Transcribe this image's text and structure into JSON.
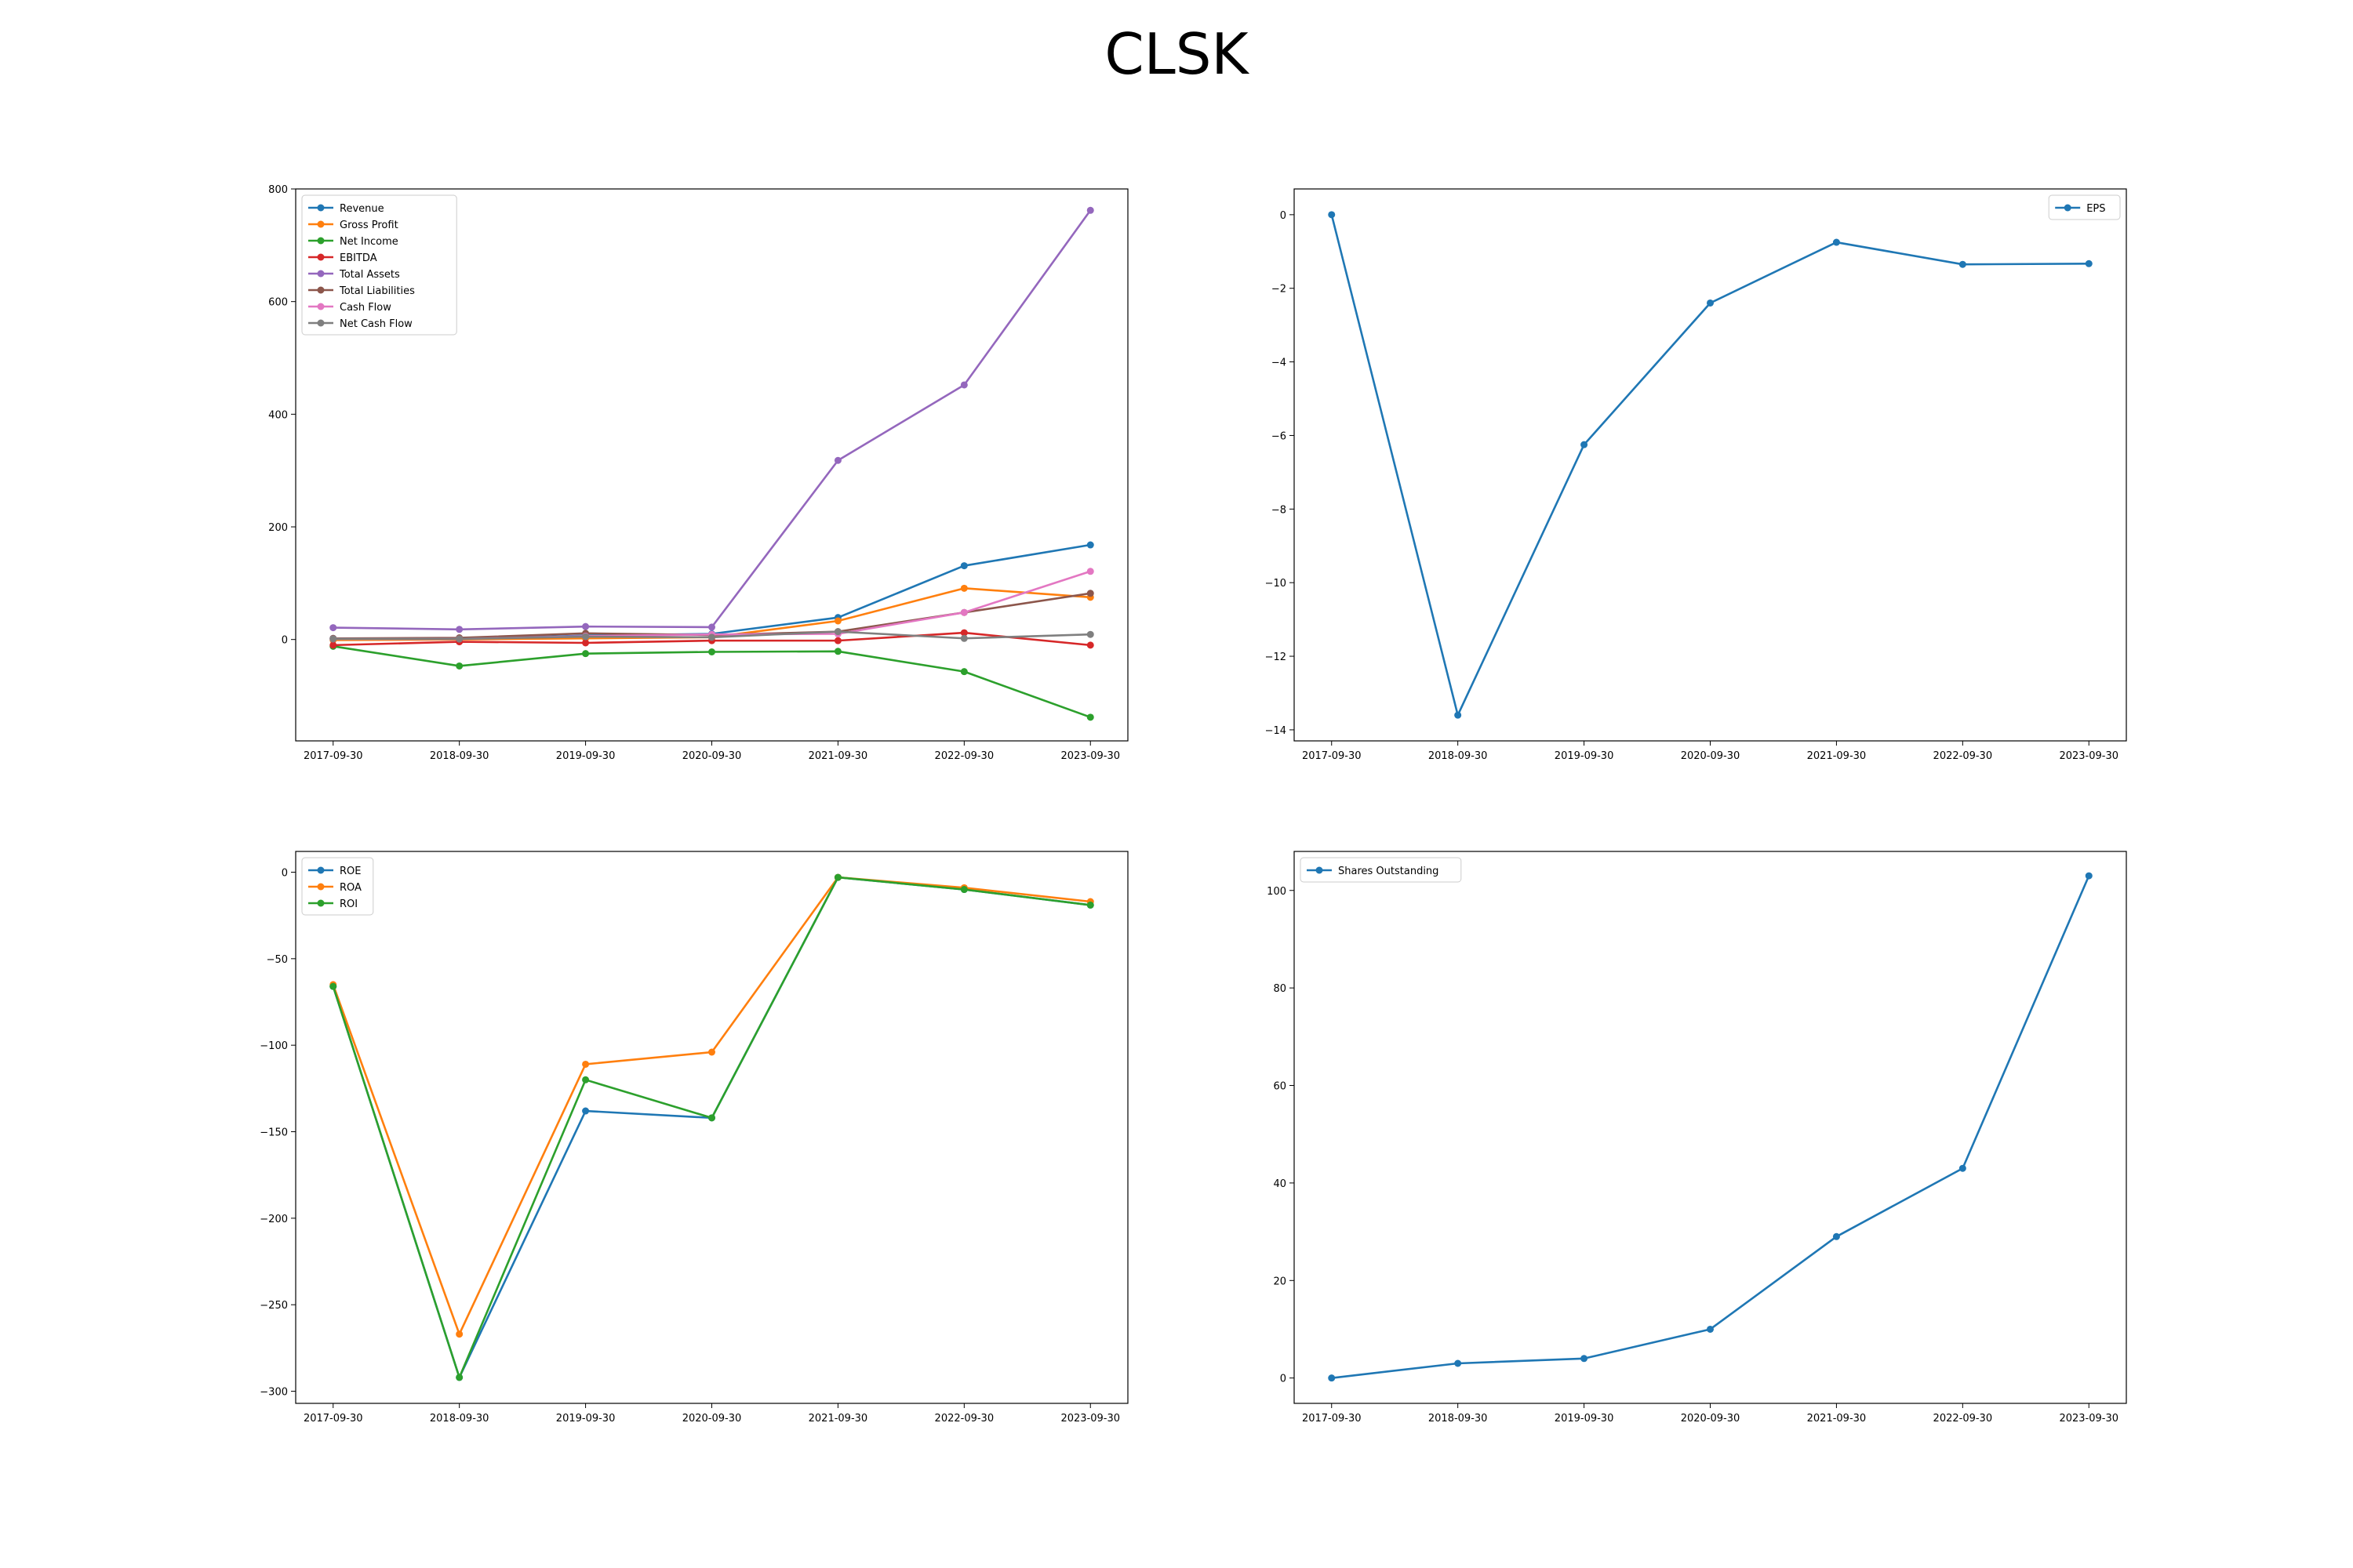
{
  "figure": {
    "title": "CLSK"
  },
  "chart_data": [
    {
      "type": "line",
      "title": "",
      "xlabel": "",
      "ylabel": "",
      "categories": [
        "2017-09-30",
        "2018-09-30",
        "2019-09-30",
        "2020-09-30",
        "2021-09-30",
        "2022-09-30",
        "2023-09-30"
      ],
      "ylim": [
        -180,
        800
      ],
      "yticks": [
        0,
        200,
        400,
        600,
        800
      ],
      "legend_position": "upper-left",
      "grid": false,
      "series": [
        {
          "name": "Revenue",
          "color": "#1f77b4",
          "values": [
            2,
            1,
            7,
            10,
            39,
            131,
            168
          ]
        },
        {
          "name": "Gross Profit",
          "color": "#ff7f0e",
          "values": [
            -1,
            0,
            2,
            4,
            33,
            91,
            75
          ]
        },
        {
          "name": "Net Income",
          "color": "#2ca02c",
          "values": [
            -12,
            -47,
            -25,
            -22,
            -21,
            -57,
            -138
          ]
        },
        {
          "name": "EBITDA",
          "color": "#d62728",
          "values": [
            -10,
            -4,
            -6,
            -2,
            -2,
            12,
            -10
          ]
        },
        {
          "name": "Total Assets",
          "color": "#9467bd",
          "values": [
            21,
            18,
            23,
            22,
            318,
            452,
            762
          ]
        },
        {
          "name": "Total Liabilities",
          "color": "#8c564b",
          "values": [
            2,
            3,
            11,
            8,
            14,
            48,
            82
          ]
        },
        {
          "name": "Cash Flow",
          "color": "#e377c2",
          "values": [
            1,
            1,
            6,
            9,
            10,
            48,
            121
          ]
        },
        {
          "name": "Net Cash Flow",
          "color": "#7f7f7f",
          "values": [
            1,
            1,
            5,
            4,
            14,
            2,
            9
          ]
        }
      ]
    },
    {
      "type": "line",
      "title": "",
      "xlabel": "",
      "ylabel": "",
      "categories": [
        "2017-09-30",
        "2018-09-30",
        "2019-09-30",
        "2020-09-30",
        "2021-09-30",
        "2022-09-30",
        "2023-09-30"
      ],
      "ylim": [
        -14.3,
        0.7
      ],
      "yticks": [
        0,
        -2,
        -4,
        -6,
        -8,
        -10,
        -12,
        -14
      ],
      "legend_position": "upper-right",
      "grid": false,
      "series": [
        {
          "name": "EPS",
          "color": "#1f77b4",
          "values": [
            0,
            -13.6,
            -6.25,
            -2.4,
            -0.75,
            -1.35,
            -1.33
          ]
        }
      ]
    },
    {
      "type": "line",
      "title": "",
      "xlabel": "",
      "ylabel": "",
      "categories": [
        "2017-09-30",
        "2018-09-30",
        "2019-09-30",
        "2020-09-30",
        "2021-09-30",
        "2022-09-30",
        "2023-09-30"
      ],
      "ylim": [
        -307,
        12
      ],
      "yticks": [
        0,
        -50,
        -100,
        -150,
        -200,
        -250,
        -300
      ],
      "legend_position": "upper-left",
      "grid": false,
      "series": [
        {
          "name": "ROE",
          "color": "#1f77b4",
          "values": [
            -66,
            -292,
            -138,
            -142,
            -3,
            -10,
            -19
          ]
        },
        {
          "name": "ROA",
          "color": "#ff7f0e",
          "values": [
            -65,
            -267,
            -111,
            -104,
            -3,
            -9,
            -17
          ]
        },
        {
          "name": "ROI",
          "color": "#2ca02c",
          "values": [
            -66,
            -292,
            -120,
            -142,
            -3,
            -10,
            -19
          ]
        }
      ]
    },
    {
      "type": "line",
      "title": "",
      "xlabel": "",
      "ylabel": "",
      "categories": [
        "2017-09-30",
        "2018-09-30",
        "2019-09-30",
        "2020-09-30",
        "2021-09-30",
        "2022-09-30",
        "2023-09-30"
      ],
      "ylim": [
        -5.2,
        108
      ],
      "yticks": [
        0,
        20,
        40,
        60,
        80,
        100
      ],
      "legend_position": "upper-left",
      "grid": false,
      "series": [
        {
          "name": "Shares Outstanding",
          "color": "#1f77b4",
          "values": [
            0,
            3,
            4,
            10,
            29,
            43,
            103
          ]
        }
      ]
    }
  ]
}
